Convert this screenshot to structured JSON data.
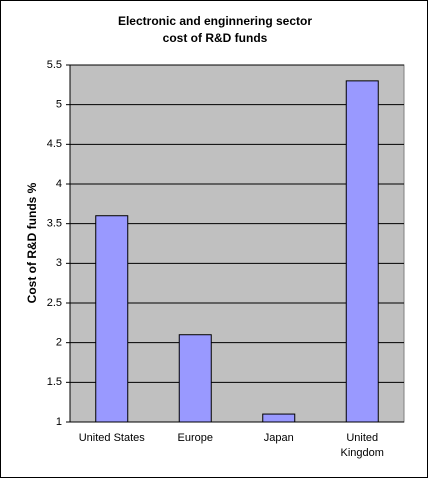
{
  "chart_data": {
    "type": "bar",
    "title": [
      "Electronic and enginnering sector",
      "cost of R&D funds"
    ],
    "y_label": "Cost of R&D funds %",
    "categories": [
      "United States",
      "Europe",
      "Japan",
      "United Kingdom"
    ],
    "values": [
      3.6,
      2.1,
      1.1,
      5.3
    ],
    "color": "#9999ff",
    "ylim": [
      1,
      5.5
    ],
    "yticks": [
      1,
      1.5,
      2,
      2.5,
      3,
      3.5,
      4,
      4.5,
      5,
      5.5
    ],
    "grid": true
  }
}
